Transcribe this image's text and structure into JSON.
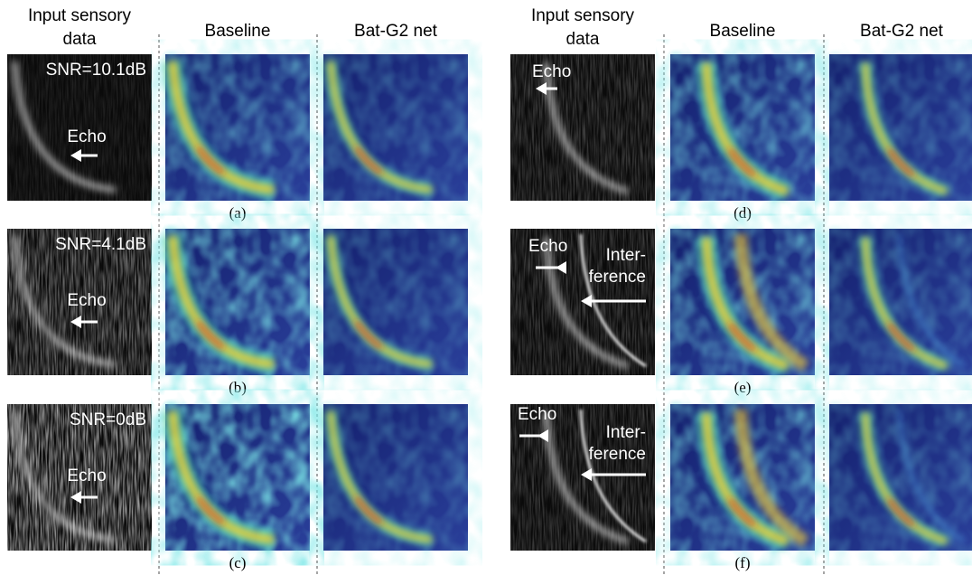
{
  "headers": {
    "left": {
      "input": [
        "Input sensory",
        "data"
      ],
      "baseline": "Baseline",
      "proposed": "Bat-G2 net"
    },
    "right": {
      "input": [
        "Input sensory",
        "data"
      ],
      "baseline": "Baseline",
      "proposed": "Bat-G2 net"
    }
  },
  "rows": [
    {
      "label": "(a)",
      "snr": "SNR=10.1dB",
      "echo": "Echo"
    },
    {
      "label": "(b)",
      "snr": "SNR=4.1dB",
      "echo": "Echo"
    },
    {
      "label": "(c)",
      "snr": "SNR=0dB",
      "echo": "Echo"
    },
    {
      "label": "(d)",
      "echo": "Echo"
    },
    {
      "label": "(e)",
      "echo": "Echo",
      "interference": [
        "Inter-",
        "ference"
      ]
    },
    {
      "label": "(f)",
      "echo": "Echo",
      "interference": [
        "Inter-",
        "ference"
      ]
    }
  ]
}
